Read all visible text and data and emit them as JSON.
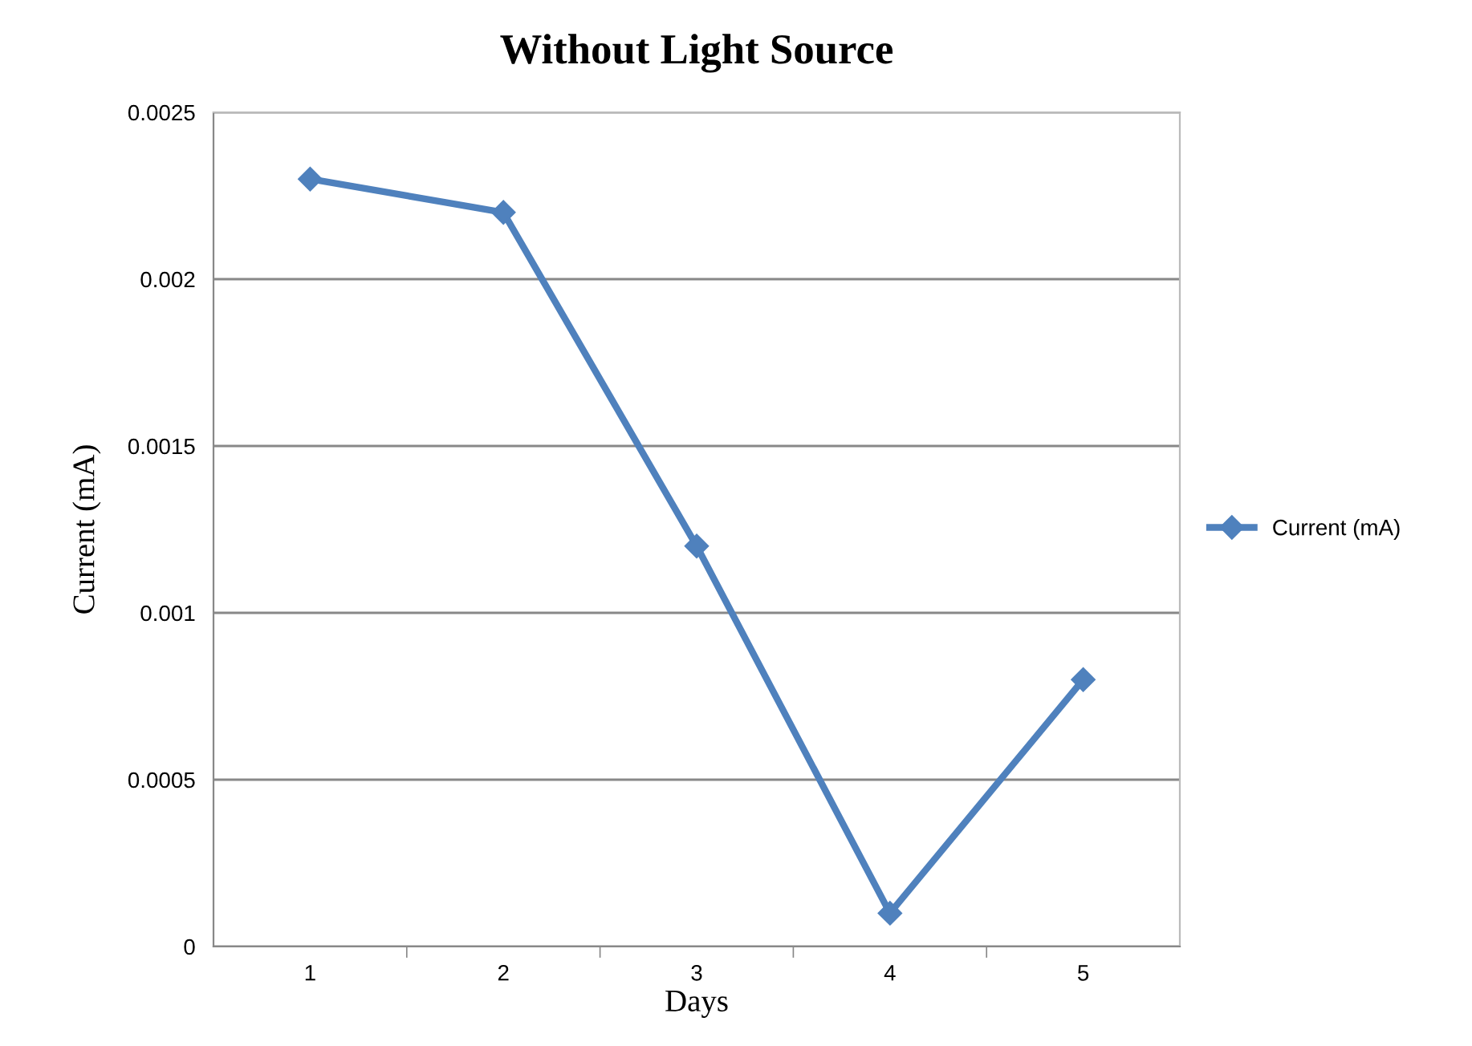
{
  "chart_data": {
    "type": "line",
    "title": "Without Light Source",
    "xlabel": "Days",
    "ylabel": "Current (mA)",
    "categories": [
      "1",
      "2",
      "3",
      "4",
      "5"
    ],
    "series": [
      {
        "name": "Current (mA)",
        "color": "#4f81bd",
        "values": [
          0.0023,
          0.0022,
          0.0012,
          0.0001,
          0.0008
        ]
      }
    ],
    "ylim": [
      0,
      0.0025
    ],
    "yticks": [
      0,
      0.0005,
      0.001,
      0.0015,
      0.002,
      0.0025
    ],
    "grid": "y",
    "legend": "right",
    "marker": "diamond",
    "line_style": "solid"
  }
}
